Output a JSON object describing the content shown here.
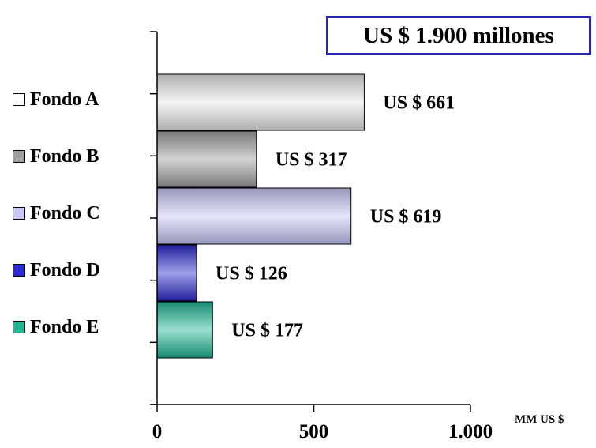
{
  "chart_data": {
    "type": "bar",
    "orientation": "horizontal",
    "categories": [
      "Fondo A",
      "Fondo B",
      "Fondo C",
      "Fondo D",
      "Fondo E"
    ],
    "values": [
      661,
      317,
      619,
      126,
      177
    ],
    "data_labels": [
      "US $ 661",
      "US $ 317",
      "US $ 619",
      "US $ 126",
      "US $ 177"
    ],
    "colors": [
      "#e6e6e6",
      "#a0a0a0",
      "#c8c8f8",
      "#2a2ad0",
      "#1fb896"
    ],
    "xlim": [
      0,
      1000
    ],
    "x_ticks": [
      0,
      500,
      1000
    ],
    "x_tick_labels": [
      "0",
      "500",
      "1.000"
    ],
    "xlabel": "MM US $",
    "annotation": "US $ 1.900 millones",
    "legend_position": "left",
    "grid": false
  }
}
